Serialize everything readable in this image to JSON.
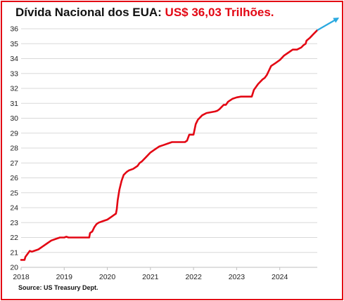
{
  "title": {
    "prefix": "Dívida Nacional dos EUA: ",
    "highlight": "US$ 36,03 Trilhões."
  },
  "source": "Source: US Treasury Dept.",
  "colors": {
    "line": "#e30613",
    "arrow": "#2aa9e0",
    "frame": "#e30613",
    "grid": "#d9d9d9"
  },
  "chart_data": {
    "type": "line",
    "title": "Dívida Nacional dos EUA: US$ 36,03 Trilhões.",
    "xlabel": "",
    "ylabel": "",
    "xlim": [
      2018.0,
      2024.87
    ],
    "ylim": [
      20,
      36
    ],
    "grid": true,
    "x_ticks": [
      "2018",
      "2019",
      "2020",
      "2021",
      "2022",
      "2023",
      "2024"
    ],
    "y_ticks": [
      "20",
      "21",
      "22",
      "23",
      "24",
      "25",
      "26",
      "27",
      "28",
      "29",
      "30",
      "31",
      "32",
      "33",
      "34",
      "35",
      "36"
    ],
    "series": [
      {
        "x": [
          2018.0,
          2018.08,
          2018.1,
          2018.15,
          2018.2,
          2018.25,
          2018.3,
          2018.4,
          2018.5,
          2018.6,
          2018.7,
          2018.8,
          2018.9,
          2019.0,
          2019.05,
          2019.1,
          2019.2,
          2019.3,
          2019.4,
          2019.5,
          2019.58,
          2019.6,
          2019.65,
          2019.7,
          2019.75,
          2019.8,
          2019.9,
          2020.0,
          2020.1,
          2020.15,
          2020.2,
          2020.22,
          2020.24,
          2020.28,
          2020.33,
          2020.38,
          2020.45,
          2020.5,
          2020.6,
          2020.7,
          2020.75,
          2020.8,
          2020.9,
          2021.0,
          2021.1,
          2021.2,
          2021.3,
          2021.4,
          2021.5,
          2021.55,
          2021.6,
          2021.7,
          2021.8,
          2021.85,
          2021.9,
          2021.95,
          2022.0,
          2022.05,
          2022.1,
          2022.2,
          2022.3,
          2022.4,
          2022.5,
          2022.55,
          2022.6,
          2022.7,
          2022.75,
          2022.8,
          2022.9,
          2023.0,
          2023.1,
          2023.2,
          2023.35,
          2023.4,
          2023.5,
          2023.6,
          2023.65,
          2023.7,
          2023.8,
          2023.9,
          2024.0,
          2024.1,
          2024.2,
          2024.3,
          2024.4,
          2024.5,
          2024.55,
          2024.6,
          2024.62,
          2024.7,
          2024.8,
          2024.87
        ],
        "values": [
          20.5,
          20.5,
          20.7,
          20.9,
          21.1,
          21.05,
          21.1,
          21.2,
          21.4,
          21.6,
          21.8,
          21.9,
          22.0,
          22.0,
          22.05,
          22.0,
          22.0,
          22.0,
          22.0,
          22.0,
          22.0,
          22.3,
          22.4,
          22.7,
          22.9,
          23.0,
          23.1,
          23.2,
          23.4,
          23.5,
          23.6,
          23.9,
          24.5,
          25.2,
          25.8,
          26.2,
          26.4,
          26.5,
          26.6,
          26.8,
          27.0,
          27.1,
          27.4,
          27.7,
          27.9,
          28.1,
          28.2,
          28.3,
          28.4,
          28.4,
          28.4,
          28.4,
          28.4,
          28.5,
          28.9,
          28.9,
          28.9,
          29.6,
          29.9,
          30.2,
          30.35,
          30.4,
          30.45,
          30.5,
          30.6,
          30.9,
          30.9,
          31.1,
          31.3,
          31.4,
          31.45,
          31.45,
          31.45,
          31.9,
          32.3,
          32.6,
          32.7,
          32.9,
          33.5,
          33.7,
          33.9,
          34.2,
          34.4,
          34.6,
          34.6,
          34.75,
          34.9,
          35.0,
          35.2,
          35.4,
          35.7,
          35.9
        ],
        "trend_arrow": {
          "from": [
            2024.87,
            35.9
          ],
          "to": [
            2025.35,
            36.7
          ]
        }
      }
    ]
  }
}
